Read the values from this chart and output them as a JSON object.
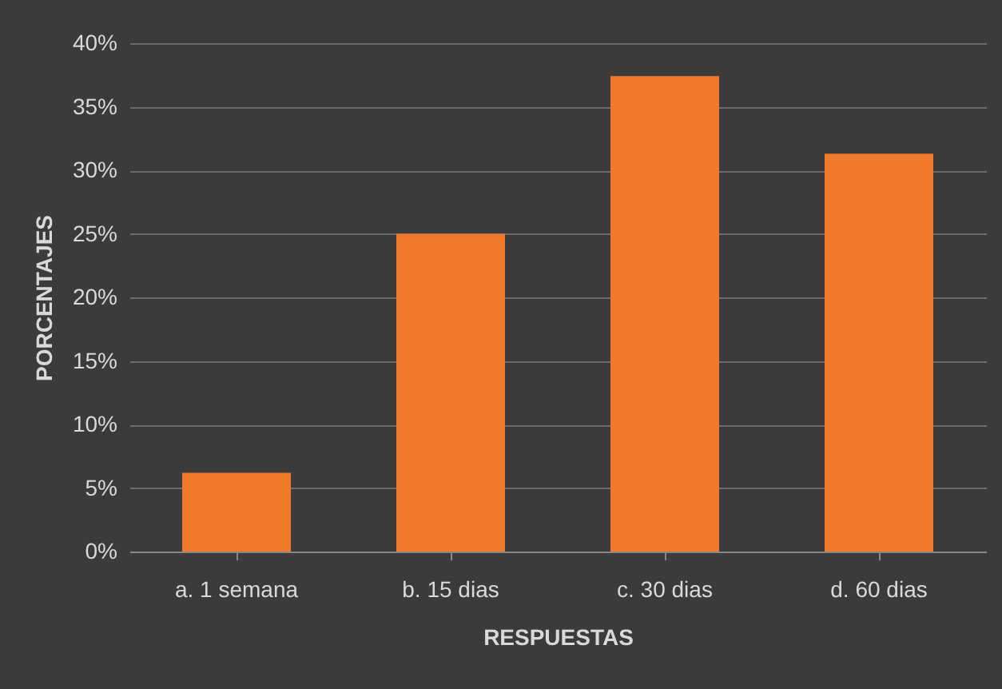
{
  "chart_data": {
    "type": "bar",
    "xlabel": "RESPUESTAS",
    "ylabel": "PORCENTAJES",
    "categories": [
      "a. 1 semana",
      "b. 15 dias",
      "c. 30 dias",
      "d. 60 dias"
    ],
    "values": [
      6.2,
      25,
      37.4,
      31.3
    ],
    "color": "#f07a2a",
    "ylim": [
      0,
      40
    ],
    "yticks": [
      {
        "value": 0,
        "label": "0%"
      },
      {
        "value": 5,
        "label": "5%"
      },
      {
        "value": 10,
        "label": "10%"
      },
      {
        "value": 15,
        "label": "15%"
      },
      {
        "value": 20,
        "label": "20%"
      },
      {
        "value": 25,
        "label": "25%"
      },
      {
        "value": 30,
        "label": "30%"
      },
      {
        "value": 35,
        "label": "35%"
      },
      {
        "value": 40,
        "label": "40%"
      }
    ],
    "grid": "y"
  }
}
